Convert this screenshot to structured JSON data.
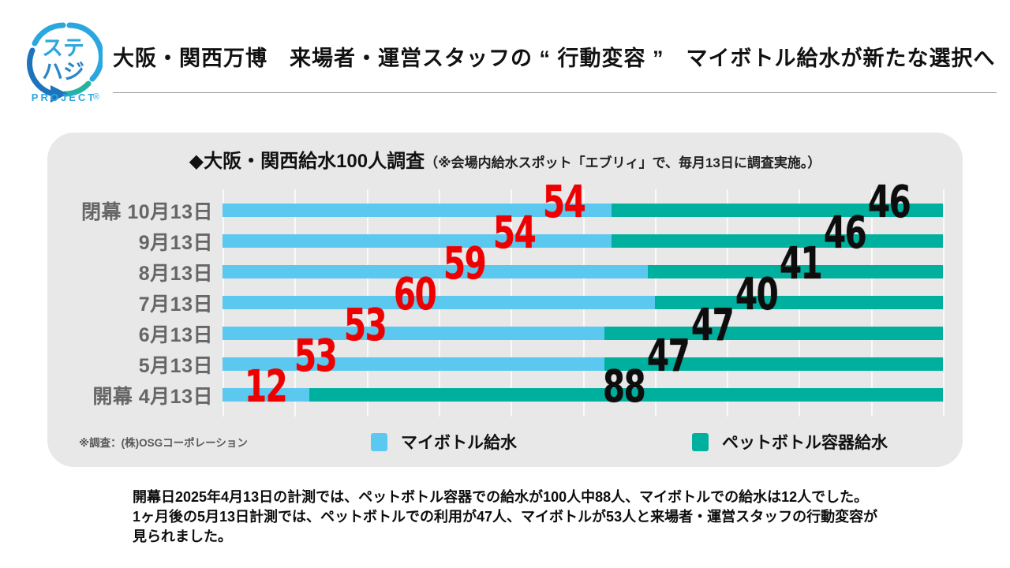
{
  "logo": {
    "text_top": "ステ",
    "text_bottom": "ハジ",
    "registered": "®",
    "project": "PROJECT"
  },
  "header": {
    "title": "大阪・関西万博　来場者・運営スタッフの “ 行動変容 ”　マイボトル給水が新たな選択へ"
  },
  "panel": {
    "title_main": "◆大阪・関西給水100人調査",
    "title_note": "（※会場内給水スポット「エブリィ」で、毎月13日に調査実施。）",
    "source_note": "※調査：(株)OSGコーポレーション"
  },
  "chart_data": {
    "type": "bar",
    "orientation": "horizontal",
    "stacked": true,
    "title": "◆大阪・関西給水100人調査（※会場内給水スポット「エブリィ」で、毎月13日に調査実施。）",
    "categories": [
      "閉幕 10月13日",
      "9月13日",
      "8月13日",
      "7月13日",
      "6月13日",
      "5月13日",
      "開幕 4月13日"
    ],
    "series": [
      {
        "name": "マイボトル給水",
        "color": "#5bc8f0",
        "value_label_color": "#ee0000",
        "values": [
          54,
          54,
          59,
          60,
          53,
          53,
          12
        ]
      },
      {
        "name": "ペットボトル容器給水",
        "color": "#00b09e",
        "value_label_color": "#0d0d0d",
        "values": [
          46,
          46,
          41,
          40,
          47,
          47,
          88
        ]
      }
    ],
    "xlim": [
      0,
      100
    ],
    "gridline_interval": 10,
    "grid": true,
    "legend_position": "bottom"
  },
  "footer": {
    "line1": "開幕日2025年4月13日の計測では、ペットボトル容器での給水が100人中88人、マイボトルでの給水は12人でした。",
    "line2": "1ヶ月後の5月13日計測では、ペットボトルでの利用が47人、マイボトルが53人と来場者・運営スタッフの行動変容が",
    "line3": "見られました。"
  },
  "colors": {
    "page_bg": "#ffffff",
    "panel_bg": "#e8e8e8",
    "bar_blue": "#5bc8f0",
    "bar_teal": "#00b09e",
    "value_red": "#ee0000",
    "value_black": "#0d0d0d",
    "row_label_gray": "#666666",
    "note_gray": "#595959",
    "logo_blue": "#2ba7df",
    "logo_dark_blue": "#1d74bd",
    "logo_teal": "#28b2a0"
  }
}
